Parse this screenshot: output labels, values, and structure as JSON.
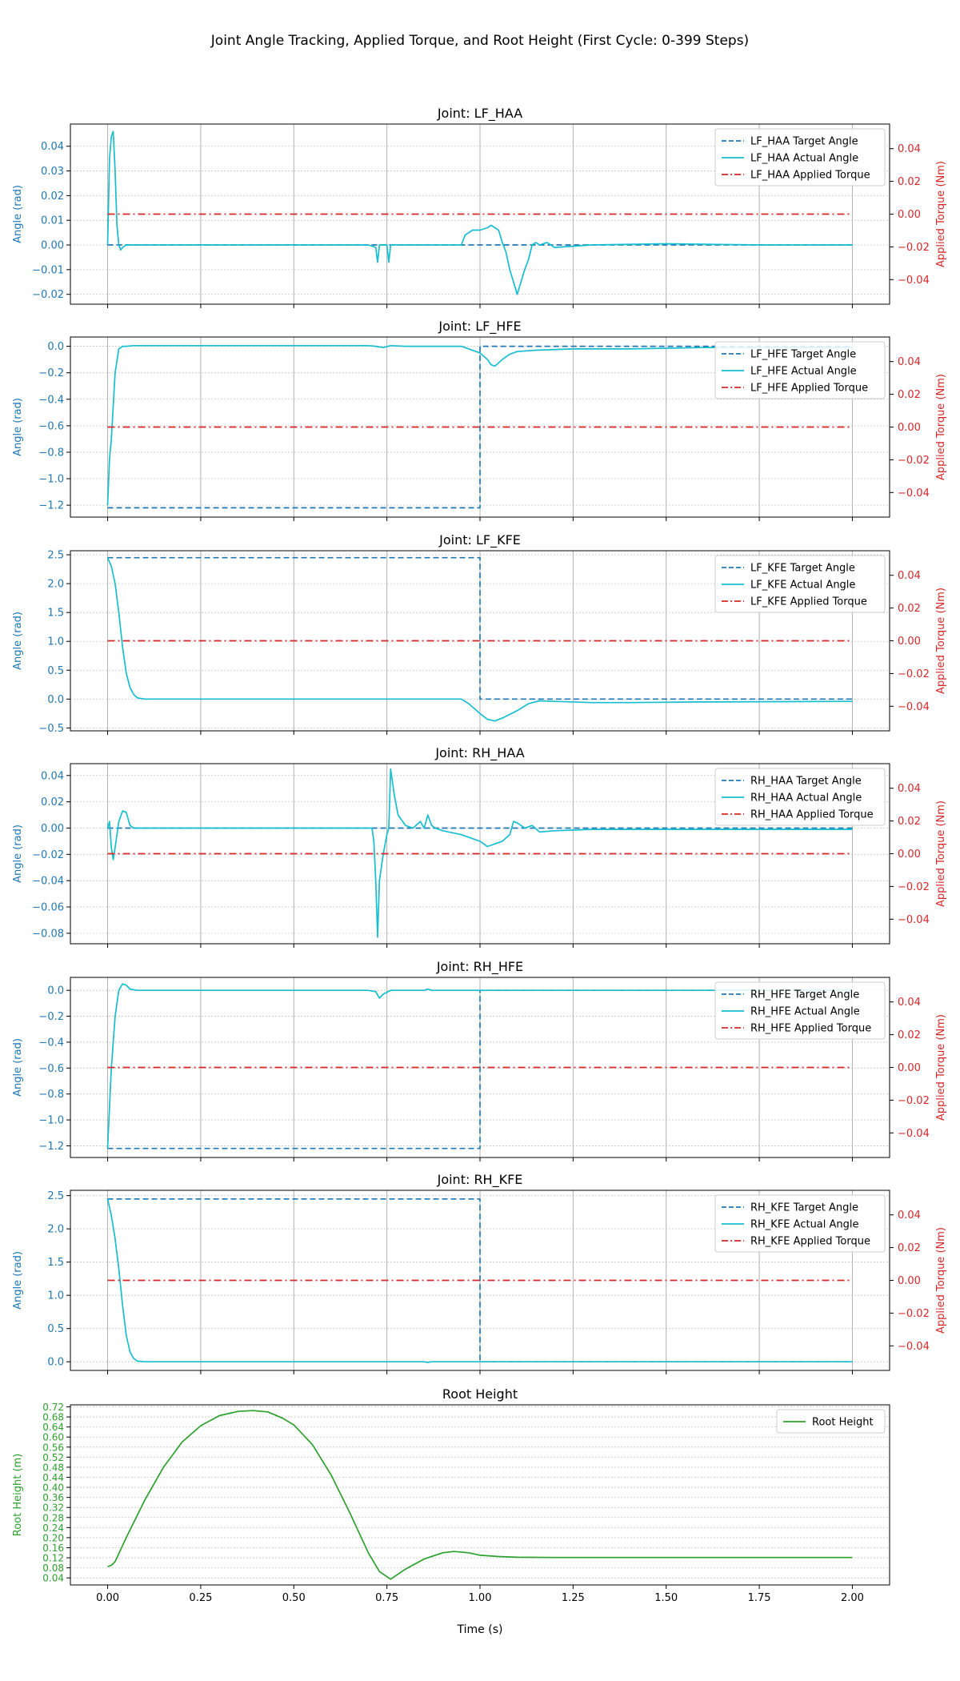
{
  "figure": {
    "title": "Joint Angle Tracking, Applied Torque, and Root Height (First Cycle: 0-399 Steps)",
    "x_axis_label": "Time (s)"
  },
  "colors": {
    "target": "#1f77b4",
    "actual": "#17becf",
    "torque": "#d62728",
    "root": "#2ca02c",
    "angle_axis": "#1f77b4",
    "torque_axis": "#d62728"
  },
  "chart_data": [
    {
      "type": "line",
      "title": "Joint: LF_HAA",
      "xlabel": "",
      "ylabel": "Angle (rad)",
      "y2label": "Applied Torque (Nm)",
      "xlim": [
        -0.1,
        2.1
      ],
      "xticks": [
        0.0,
        0.25,
        0.5,
        0.75,
        1.0,
        1.25,
        1.5,
        1.75,
        2.0
      ],
      "ylim": [
        -0.024,
        0.049
      ],
      "yticks": [
        0.04,
        0.03,
        0.02,
        0.01,
        0.0,
        -0.01,
        -0.02
      ],
      "ytick_labels": [
        "0.04",
        "0.03",
        "0.02",
        "0.01",
        "0.00",
        "−0.01",
        "−0.02"
      ],
      "y2lim": [
        -0.055,
        0.055
      ],
      "y2ticks": [
        0.04,
        0.02,
        0.0,
        -0.02,
        -0.04
      ],
      "y2tick_labels": [
        "0.04",
        "0.02",
        "0.00",
        "−0.02",
        "−0.04"
      ],
      "x_grid": true,
      "y_grid": "dotted",
      "legend_position": "top-right",
      "series": [
        {
          "name": "LF_HAA Target Angle",
          "style": "dashed",
          "axis": "left",
          "x": [
            0,
            2
          ],
          "y": [
            0,
            0
          ]
        },
        {
          "name": "LF_HAA Actual Angle",
          "style": "solid",
          "axis": "left",
          "x": [
            0,
            0.005,
            0.01,
            0.015,
            0.02,
            0.025,
            0.03,
            0.035,
            0.04,
            0.05,
            0.07,
            0.1,
            0.7,
            0.72,
            0.725,
            0.73,
            0.74,
            0.75,
            0.755,
            0.76,
            0.77,
            0.8,
            0.95,
            0.96,
            0.98,
            1.0,
            1.02,
            1.03,
            1.04,
            1.05,
            1.06,
            1.07,
            1.08,
            1.09,
            1.1,
            1.12,
            1.13,
            1.14,
            1.15,
            1.16,
            1.18,
            1.2,
            1.3,
            1.5,
            1.75,
            2.0
          ],
          "y": [
            0.0,
            0.035,
            0.044,
            0.046,
            0.03,
            0.008,
            0.0,
            -0.002,
            -0.001,
            0.0,
            0.0,
            0.0,
            0.0,
            -0.001,
            -0.007,
            0.0,
            0.0,
            0.0,
            -0.007,
            0.0,
            0.0,
            0.0,
            0.0,
            0.004,
            0.006,
            0.006,
            0.007,
            0.008,
            0.007,
            0.006,
            0.001,
            -0.003,
            -0.01,
            -0.015,
            -0.02,
            -0.01,
            -0.006,
            0.0,
            0.001,
            0.0,
            0.001,
            -0.001,
            0.0,
            0.0005,
            0.0,
            0.0
          ]
        },
        {
          "name": "LF_HAA Applied Torque",
          "style": "dashdot",
          "axis": "right",
          "x": [
            0,
            2
          ],
          "y": [
            0,
            0
          ]
        }
      ]
    },
    {
      "type": "line",
      "title": "Joint: LF_HFE",
      "xlabel": "",
      "ylabel": "Angle (rad)",
      "y2label": "Applied Torque (Nm)",
      "xlim": [
        -0.1,
        2.1
      ],
      "xticks": [
        0.0,
        0.25,
        0.5,
        0.75,
        1.0,
        1.25,
        1.5,
        1.75,
        2.0
      ],
      "ylim": [
        -1.29,
        0.07
      ],
      "yticks": [
        0.0,
        -0.2,
        -0.4,
        -0.6,
        -0.8,
        -1.0,
        -1.2
      ],
      "ytick_labels": [
        "0.0",
        "−0.2",
        "−0.4",
        "−0.6",
        "−0.8",
        "−1.0",
        "−1.2"
      ],
      "y2lim": [
        -0.055,
        0.055
      ],
      "y2ticks": [
        0.04,
        0.02,
        0.0,
        -0.02,
        -0.04
      ],
      "y2tick_labels": [
        "0.04",
        "0.02",
        "0.00",
        "−0.02",
        "−0.04"
      ],
      "x_grid": true,
      "y_grid": "dotted",
      "legend_position": "top-right",
      "series": [
        {
          "name": "LF_HFE Target Angle",
          "style": "dashed",
          "axis": "left",
          "x": [
            0,
            1.0,
            1.0,
            2.0
          ],
          "y": [
            -1.22,
            -1.22,
            0.0,
            0.0
          ]
        },
        {
          "name": "LF_HFE Actual Angle",
          "style": "solid",
          "axis": "left",
          "x": [
            0,
            0.005,
            0.01,
            0.02,
            0.03,
            0.04,
            0.05,
            0.07,
            0.1,
            0.2,
            0.7,
            0.72,
            0.74,
            0.76,
            0.8,
            0.95,
            1.0,
            1.02,
            1.03,
            1.04,
            1.06,
            1.08,
            1.1,
            1.15,
            1.25,
            1.4,
            1.6,
            2.0
          ],
          "y": [
            -1.2,
            -0.85,
            -0.7,
            -0.2,
            -0.02,
            0.0,
            0.0,
            0.005,
            0.005,
            0.005,
            0.005,
            0.0,
            -0.01,
            0.005,
            0.0,
            0.0,
            -0.05,
            -0.1,
            -0.14,
            -0.15,
            -0.1,
            -0.06,
            -0.04,
            -0.03,
            -0.02,
            -0.02,
            -0.01,
            -0.01
          ]
        },
        {
          "name": "LF_HFE Applied Torque",
          "style": "dashdot",
          "axis": "right",
          "x": [
            0,
            2
          ],
          "y": [
            0,
            0
          ]
        }
      ]
    },
    {
      "type": "line",
      "title": "Joint: LF_KFE",
      "xlabel": "",
      "ylabel": "Angle (rad)",
      "y2label": "Applied Torque (Nm)",
      "xlim": [
        -0.1,
        2.1
      ],
      "xticks": [
        0.0,
        0.25,
        0.5,
        0.75,
        1.0,
        1.25,
        1.5,
        1.75,
        2.0
      ],
      "ylim": [
        -0.55,
        2.57
      ],
      "yticks": [
        2.5,
        2.0,
        1.5,
        1.0,
        0.5,
        0.0,
        -0.5
      ],
      "ytick_labels": [
        "2.5",
        "2.0",
        "1.5",
        "1.0",
        "0.5",
        "0.0",
        "−0.5"
      ],
      "y2lim": [
        -0.055,
        0.055
      ],
      "y2ticks": [
        0.04,
        0.02,
        0.0,
        -0.02,
        -0.04
      ],
      "y2tick_labels": [
        "0.04",
        "0.02",
        "0.00",
        "−0.02",
        "−0.04"
      ],
      "x_grid": true,
      "y_grid": "dotted",
      "legend_position": "top-right",
      "series": [
        {
          "name": "LF_KFE Target Angle",
          "style": "dashed",
          "axis": "left",
          "x": [
            0,
            1.0,
            1.0,
            2.0
          ],
          "y": [
            2.45,
            2.45,
            0.0,
            0.0
          ]
        },
        {
          "name": "LF_KFE Actual Angle",
          "style": "solid",
          "axis": "left",
          "x": [
            0,
            0.01,
            0.02,
            0.03,
            0.04,
            0.05,
            0.06,
            0.07,
            0.08,
            0.1,
            0.15,
            0.95,
            0.97,
            1.0,
            1.02,
            1.04,
            1.06,
            1.1,
            1.13,
            1.16,
            1.2,
            1.3,
            1.4,
            1.6,
            2.0
          ],
          "y": [
            2.45,
            2.3,
            2.0,
            1.5,
            0.9,
            0.45,
            0.2,
            0.08,
            0.02,
            0.0,
            0.0,
            0.0,
            -0.08,
            -0.25,
            -0.35,
            -0.38,
            -0.33,
            -0.2,
            -0.08,
            -0.03,
            -0.04,
            -0.06,
            -0.06,
            -0.05,
            -0.04
          ]
        },
        {
          "name": "LF_KFE Applied Torque",
          "style": "dashdot",
          "axis": "right",
          "x": [
            0,
            2
          ],
          "y": [
            0,
            0
          ]
        }
      ]
    },
    {
      "type": "line",
      "title": "Joint: RH_HAA",
      "xlabel": "",
      "ylabel": "Angle (rad)",
      "y2label": "Applied Torque (Nm)",
      "xlim": [
        -0.1,
        2.1
      ],
      "xticks": [
        0.0,
        0.25,
        0.5,
        0.75,
        1.0,
        1.25,
        1.5,
        1.75,
        2.0
      ],
      "ylim": [
        -0.088,
        0.049
      ],
      "yticks": [
        0.04,
        0.02,
        0.0,
        -0.02,
        -0.04,
        -0.06,
        -0.08
      ],
      "ytick_labels": [
        "0.04",
        "0.02",
        "0.00",
        "−0.02",
        "−0.04",
        "−0.06",
        "−0.08"
      ],
      "y2lim": [
        -0.055,
        0.055
      ],
      "y2ticks": [
        0.04,
        0.02,
        0.0,
        -0.02,
        -0.04
      ],
      "y2tick_labels": [
        "0.04",
        "0.02",
        "0.00",
        "−0.02",
        "−0.04"
      ],
      "x_grid": true,
      "y_grid": "dotted",
      "legend_position": "top-right",
      "series": [
        {
          "name": "RH_HAA Target Angle",
          "style": "dashed",
          "axis": "left",
          "x": [
            0,
            2
          ],
          "y": [
            0,
            0
          ]
        },
        {
          "name": "RH_HAA Actual Angle",
          "style": "solid",
          "axis": "left",
          "x": [
            0,
            0.005,
            0.01,
            0.015,
            0.02,
            0.03,
            0.04,
            0.05,
            0.06,
            0.07,
            0.1,
            0.7,
            0.71,
            0.715,
            0.72,
            0.725,
            0.73,
            0.74,
            0.75,
            0.755,
            0.76,
            0.77,
            0.78,
            0.8,
            0.82,
            0.84,
            0.85,
            0.86,
            0.87,
            0.88,
            0.9,
            0.95,
            1.0,
            1.02,
            1.04,
            1.06,
            1.08,
            1.09,
            1.1,
            1.12,
            1.14,
            1.16,
            1.2,
            1.3,
            1.5,
            2.0
          ],
          "y": [
            0.0,
            0.005,
            -0.015,
            -0.024,
            -0.015,
            0.005,
            0.013,
            0.012,
            0.002,
            0.0,
            0.0,
            0.0,
            0.0,
            -0.01,
            -0.04,
            -0.083,
            -0.04,
            -0.02,
            -0.005,
            0.0,
            0.045,
            0.025,
            0.01,
            0.002,
            0.0,
            0.005,
            0.0,
            0.01,
            0.002,
            0.0,
            -0.002,
            -0.005,
            -0.01,
            -0.014,
            -0.012,
            -0.01,
            -0.005,
            0.005,
            0.004,
            0.0,
            0.002,
            -0.003,
            -0.002,
            -0.001,
            -0.001,
            -0.001
          ]
        },
        {
          "name": "RH_HAA Applied Torque",
          "style": "dashdot",
          "axis": "right",
          "x": [
            0,
            2
          ],
          "y": [
            0,
            0
          ]
        }
      ]
    },
    {
      "type": "line",
      "title": "Joint: RH_HFE",
      "xlabel": "",
      "ylabel": "Angle (rad)",
      "y2label": "Applied Torque (Nm)",
      "xlim": [
        -0.1,
        2.1
      ],
      "xticks": [
        0.0,
        0.25,
        0.5,
        0.75,
        1.0,
        1.25,
        1.5,
        1.75,
        2.0
      ],
      "ylim": [
        -1.29,
        0.1
      ],
      "yticks": [
        0.0,
        -0.2,
        -0.4,
        -0.6,
        -0.8,
        -1.0,
        -1.2
      ],
      "ytick_labels": [
        "0.0",
        "−0.2",
        "−0.4",
        "−0.6",
        "−0.8",
        "−1.0",
        "−1.2"
      ],
      "y2lim": [
        -0.055,
        0.055
      ],
      "y2ticks": [
        0.04,
        0.02,
        0.0,
        -0.02,
        -0.04
      ],
      "y2tick_labels": [
        "0.04",
        "0.02",
        "0.00",
        "−0.02",
        "−0.04"
      ],
      "x_grid": true,
      "y_grid": "dotted",
      "legend_position": "top-right",
      "series": [
        {
          "name": "RH_HFE Target Angle",
          "style": "dashed",
          "axis": "left",
          "x": [
            0,
            1.0,
            1.0,
            2.0
          ],
          "y": [
            -1.22,
            -1.22,
            0.0,
            0.0
          ]
        },
        {
          "name": "RH_HFE Actual Angle",
          "style": "solid",
          "axis": "left",
          "x": [
            0,
            0.005,
            0.01,
            0.02,
            0.03,
            0.04,
            0.05,
            0.06,
            0.08,
            0.1,
            0.7,
            0.72,
            0.73,
            0.74,
            0.76,
            0.8,
            0.85,
            0.86,
            0.87,
            0.9,
            1.0,
            2.0
          ],
          "y": [
            -1.22,
            -0.9,
            -0.6,
            -0.2,
            0.0,
            0.05,
            0.04,
            0.01,
            0.0,
            0.0,
            0.0,
            -0.01,
            -0.06,
            -0.03,
            0.0,
            0.0,
            0.0,
            0.01,
            0.0,
            0.0,
            0.0,
            0.0
          ]
        },
        {
          "name": "RH_HFE Applied Torque",
          "style": "dashdot",
          "axis": "right",
          "x": [
            0,
            2
          ],
          "y": [
            0,
            0
          ]
        }
      ]
    },
    {
      "type": "line",
      "title": "Joint: RH_KFE",
      "xlabel": "",
      "ylabel": "Angle (rad)",
      "y2label": "Applied Torque (Nm)",
      "xlim": [
        -0.1,
        2.1
      ],
      "xticks": [
        0.0,
        0.25,
        0.5,
        0.75,
        1.0,
        1.25,
        1.5,
        1.75,
        2.0
      ],
      "ylim": [
        -0.13,
        2.58
      ],
      "yticks": [
        2.5,
        2.0,
        1.5,
        1.0,
        0.5,
        0.0
      ],
      "ytick_labels": [
        "2.5",
        "2.0",
        "1.5",
        "1.0",
        "0.5",
        "0.0"
      ],
      "y2lim": [
        -0.055,
        0.055
      ],
      "y2ticks": [
        0.04,
        0.02,
        0.0,
        -0.02,
        -0.04
      ],
      "y2tick_labels": [
        "0.04",
        "0.02",
        "0.00",
        "−0.02",
        "−0.04"
      ],
      "x_grid": true,
      "y_grid": "dotted",
      "legend_position": "top-right",
      "series": [
        {
          "name": "RH_KFE Target Angle",
          "style": "dashed",
          "axis": "left",
          "x": [
            0,
            1.0,
            1.0,
            2.0
          ],
          "y": [
            2.45,
            2.45,
            0.0,
            0.0
          ]
        },
        {
          "name": "RH_KFE Actual Angle",
          "style": "solid",
          "axis": "left",
          "x": [
            0,
            0.01,
            0.02,
            0.03,
            0.04,
            0.05,
            0.06,
            0.07,
            0.08,
            0.1,
            0.15,
            0.85,
            0.86,
            0.87,
            2.0
          ],
          "y": [
            2.45,
            2.2,
            1.85,
            1.4,
            0.85,
            0.4,
            0.15,
            0.05,
            0.01,
            0.0,
            0.0,
            0.0,
            -0.01,
            0.0,
            0.0
          ]
        },
        {
          "name": "RH_KFE Applied Torque",
          "style": "dashdot",
          "axis": "right",
          "x": [
            0,
            2
          ],
          "y": [
            0,
            0
          ]
        }
      ]
    },
    {
      "type": "line",
      "title": "Root Height",
      "xlabel": "Time (s)",
      "ylabel": "Root Height (m)",
      "xlim": [
        -0.1,
        2.1
      ],
      "xticks": [
        0.0,
        0.25,
        0.5,
        0.75,
        1.0,
        1.25,
        1.5,
        1.75,
        2.0
      ],
      "xtick_labels": [
        "0.00",
        "0.25",
        "0.50",
        "0.75",
        "1.00",
        "1.25",
        "1.50",
        "1.75",
        "2.00"
      ],
      "ylim": [
        0.012,
        0.728
      ],
      "yticks": [
        0.04,
        0.08,
        0.12,
        0.16,
        0.2,
        0.24,
        0.28,
        0.32,
        0.36,
        0.4,
        0.44,
        0.48,
        0.52,
        0.56,
        0.6,
        0.64,
        0.68,
        0.72
      ],
      "ytick_labels": [
        "0.04",
        "0.08",
        "0.12",
        "0.16",
        "0.20",
        "0.24",
        "0.28",
        "0.32",
        "0.36",
        "0.40",
        "0.44",
        "0.48",
        "0.52",
        "0.56",
        "0.60",
        "0.64",
        "0.68",
        "0.72"
      ],
      "x_grid": false,
      "y_grid": "dotted",
      "legend_position": "top-right",
      "series": [
        {
          "name": "Root Height",
          "style": "solid",
          "axis": "left",
          "x": [
            0,
            0.01,
            0.02,
            0.05,
            0.1,
            0.15,
            0.2,
            0.25,
            0.3,
            0.35,
            0.39,
            0.43,
            0.47,
            0.5,
            0.55,
            0.6,
            0.65,
            0.7,
            0.73,
            0.76,
            0.8,
            0.85,
            0.9,
            0.93,
            0.97,
            1.0,
            1.05,
            1.1,
            1.2,
            1.5,
            2.0
          ],
          "y": [
            0.085,
            0.09,
            0.105,
            0.2,
            0.35,
            0.48,
            0.58,
            0.645,
            0.685,
            0.702,
            0.705,
            0.7,
            0.675,
            0.648,
            0.57,
            0.45,
            0.3,
            0.14,
            0.065,
            0.035,
            0.075,
            0.115,
            0.14,
            0.145,
            0.14,
            0.13,
            0.125,
            0.122,
            0.121,
            0.121,
            0.121
          ]
        }
      ]
    }
  ]
}
